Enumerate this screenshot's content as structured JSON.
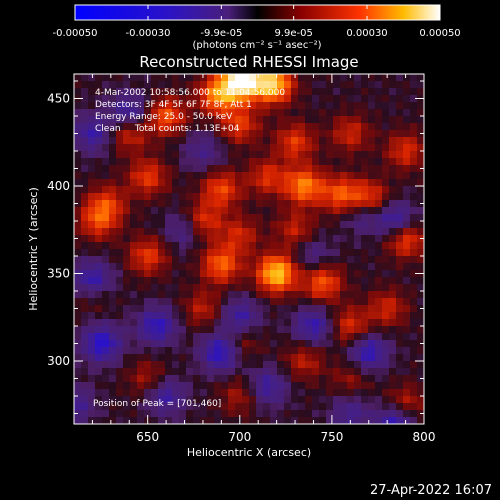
{
  "chart_data": {
    "type": "heatmap",
    "title": "Reconstructed RHESSI Image",
    "xlabel": "Heliocentric X (arcsec)",
    "ylabel": "Heliocentric Y (arcsec)",
    "xlim": [
      610,
      800
    ],
    "ylim": [
      264,
      464
    ],
    "x_ticks": [
      "650",
      "700",
      "750",
      "800"
    ],
    "y_ticks": [
      "300",
      "350",
      "400",
      "450"
    ],
    "grid": false,
    "colorbar": {
      "ticks": [
        "-0.00050",
        "-0.00030",
        "-9.9e-05",
        "9.9e-05",
        "0.00030",
        "0.00050"
      ],
      "range": [
        -0.0005,
        0.0005
      ],
      "units_label": "(photons cm⁻² s⁻¹ asec⁻²)"
    },
    "annotations": [
      "4-Mar-2002 10:58:56.000 to 11:04:56.000",
      "Detectors: 3F 4F 5F 6F 7F 8F, Att 1",
      "Energy Range: 25.0 - 50.0 keV",
      "Clean     Total counts: 1.13E+04"
    ],
    "peak": {
      "label": "Position of Peak = [701,460]",
      "x": 701,
      "y": 460
    },
    "blobs": [
      {
        "x": 701,
        "y": 460,
        "v": 0.0005
      },
      {
        "x": 718,
        "y": 458,
        "v": 0.0004
      },
      {
        "x": 688,
        "y": 452,
        "v": 0.0003
      },
      {
        "x": 660,
        "y": 440,
        "v": 0.00024
      },
      {
        "x": 640,
        "y": 430,
        "v": 0.00018
      },
      {
        "x": 700,
        "y": 435,
        "v": 0.0002
      },
      {
        "x": 730,
        "y": 425,
        "v": 0.0002
      },
      {
        "x": 760,
        "y": 430,
        "v": 0.00016
      },
      {
        "x": 790,
        "y": 420,
        "v": 0.00018
      },
      {
        "x": 650,
        "y": 405,
        "v": 0.0002
      },
      {
        "x": 690,
        "y": 398,
        "v": 0.00022
      },
      {
        "x": 715,
        "y": 405,
        "v": 0.00018
      },
      {
        "x": 735,
        "y": 400,
        "v": 0.0003
      },
      {
        "x": 755,
        "y": 395,
        "v": 0.00024
      },
      {
        "x": 770,
        "y": 392,
        "v": 0.00026
      },
      {
        "x": 628,
        "y": 390,
        "v": 0.00018
      },
      {
        "x": 623,
        "y": 380,
        "v": 0.0002
      },
      {
        "x": 680,
        "y": 380,
        "v": 0.0002
      },
      {
        "x": 700,
        "y": 372,
        "v": 0.00016
      },
      {
        "x": 730,
        "y": 375,
        "v": 0.00015
      },
      {
        "x": 790,
        "y": 370,
        "v": 0.00024
      },
      {
        "x": 650,
        "y": 360,
        "v": 0.0002
      },
      {
        "x": 690,
        "y": 355,
        "v": 0.00026
      },
      {
        "x": 720,
        "y": 350,
        "v": 0.0004
      },
      {
        "x": 745,
        "y": 345,
        "v": 0.00025
      },
      {
        "x": 620,
        "y": 340,
        "v": 0.00016
      },
      {
        "x": 680,
        "y": 330,
        "v": 0.00014
      },
      {
        "x": 760,
        "y": 320,
        "v": 0.00018
      },
      {
        "x": 780,
        "y": 330,
        "v": 0.00016
      },
      {
        "x": 700,
        "y": 310,
        "v": 0.00012
      },
      {
        "x": 735,
        "y": 300,
        "v": 0.00014
      },
      {
        "x": 650,
        "y": 290,
        "v": 0.00012
      },
      {
        "x": 760,
        "y": 290,
        "v": 0.0001
      },
      {
        "x": 790,
        "y": 275,
        "v": 0.00016
      },
      {
        "x": 700,
        "y": 280,
        "v": 0.00012
      },
      {
        "x": 640,
        "y": 442,
        "v": -0.0002
      },
      {
        "x": 620,
        "y": 430,
        "v": -0.00018
      },
      {
        "x": 785,
        "y": 380,
        "v": -0.00022
      },
      {
        "x": 767,
        "y": 385,
        "v": -0.00018
      },
      {
        "x": 620,
        "y": 345,
        "v": -0.0003
      },
      {
        "x": 625,
        "y": 310,
        "v": -0.00025
      },
      {
        "x": 655,
        "y": 320,
        "v": -0.00022
      },
      {
        "x": 700,
        "y": 325,
        "v": -0.00018
      },
      {
        "x": 690,
        "y": 305,
        "v": -0.00026
      },
      {
        "x": 740,
        "y": 320,
        "v": -0.0002
      },
      {
        "x": 770,
        "y": 305,
        "v": -0.00022
      },
      {
        "x": 715,
        "y": 285,
        "v": -0.00018
      },
      {
        "x": 660,
        "y": 280,
        "v": -0.00018
      },
      {
        "x": 610,
        "y": 275,
        "v": -0.00016
      },
      {
        "x": 785,
        "y": 265,
        "v": -0.00024
      },
      {
        "x": 760,
        "y": 270,
        "v": -0.00014
      },
      {
        "x": 670,
        "y": 375,
        "v": -0.00014
      },
      {
        "x": 740,
        "y": 360,
        "v": -0.00012
      },
      {
        "x": 680,
        "y": 420,
        "v": -0.00012
      }
    ]
  },
  "timestamp": "27-Apr-2022 16:07"
}
